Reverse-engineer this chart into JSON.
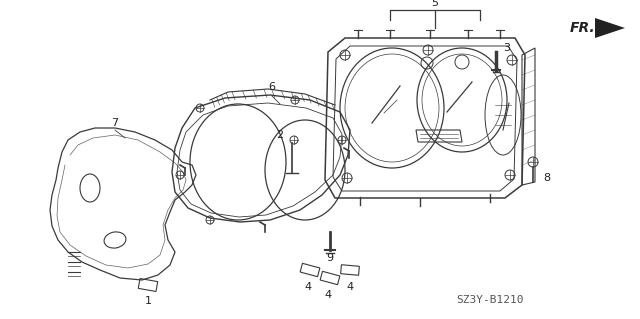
{
  "background_color": "#ffffff",
  "diagram_code": "SZ3Y-B1210",
  "line_color": "#3a3a3a",
  "text_color": "#222222",
  "font_size": 8,
  "figsize": [
    6.4,
    3.19
  ],
  "dpi": 100
}
